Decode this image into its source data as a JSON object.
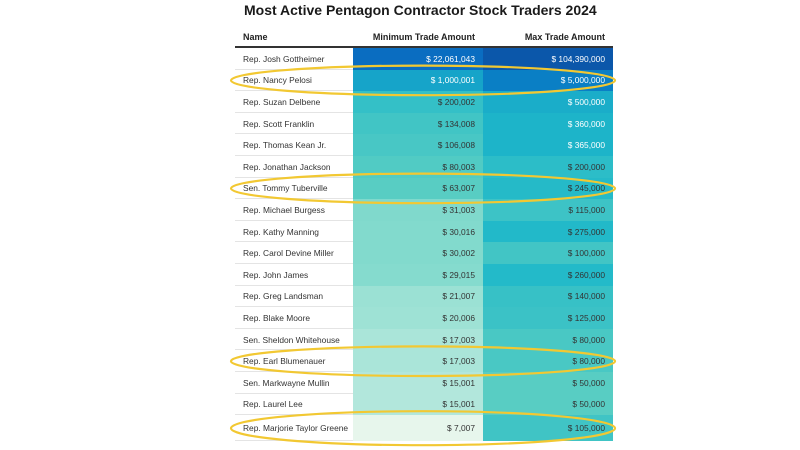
{
  "title": "Most Active Pentagon Contractor Stock Traders 2024",
  "colors": {
    "highlight_ring": "#f2c832",
    "min_scale": [
      "#eef8ee",
      "#5fd0c2",
      "#1fb8c9",
      "#0a8cc8",
      "#0a6bc1"
    ],
    "max_scale": [
      "#5fd0c2",
      "#1fb8c9",
      "#0a8cc8",
      "#0a6bc1",
      "#0b55a8"
    ]
  },
  "chart_data": {
    "type": "table",
    "columns": [
      "Name",
      "Minimum Trade Amount",
      "Max Trade Amount"
    ],
    "rows": [
      {
        "name": "Rep. Josh Gottheimer",
        "min": "$ 22,061,043",
        "max": "$ 104,390,000",
        "min_value": 22061043,
        "max_value": 104390000,
        "highlighted": false
      },
      {
        "name": "Rep. Nancy Pelosi",
        "min": "$ 1,000,001",
        "max": "$ 5,000,000",
        "min_value": 1000001,
        "max_value": 5000000,
        "highlighted": true
      },
      {
        "name": "Rep. Suzan Delbene",
        "min": "$ 200,002",
        "max": "$ 500,000",
        "min_value": 200002,
        "max_value": 500000,
        "highlighted": false
      },
      {
        "name": "Rep. Scott Franklin",
        "min": "$ 134,008",
        "max": "$ 360,000",
        "min_value": 134008,
        "max_value": 360000,
        "highlighted": false
      },
      {
        "name": "Rep. Thomas Kean Jr.",
        "min": "$ 106,008",
        "max": "$ 365,000",
        "min_value": 106008,
        "max_value": 365000,
        "highlighted": false
      },
      {
        "name": "Rep. Jonathan Jackson",
        "min": "$ 80,003",
        "max": "$ 200,000",
        "min_value": 80003,
        "max_value": 200000,
        "highlighted": false
      },
      {
        "name": "Sen. Tommy Tuberville",
        "min": "$ 63,007",
        "max": "$ 245,000",
        "min_value": 63007,
        "max_value": 245000,
        "highlighted": true
      },
      {
        "name": "Rep. Michael Burgess",
        "min": "$ 31,003",
        "max": "$ 115,000",
        "min_value": 31003,
        "max_value": 115000,
        "highlighted": false
      },
      {
        "name": "Rep. Kathy Manning",
        "min": "$ 30,016",
        "max": "$ 275,000",
        "min_value": 30016,
        "max_value": 275000,
        "highlighted": false
      },
      {
        "name": "Rep. Carol Devine Miller",
        "min": "$ 30,002",
        "max": "$ 100,000",
        "min_value": 30002,
        "max_value": 100000,
        "highlighted": false
      },
      {
        "name": "Rep. John James",
        "min": "$ 29,015",
        "max": "$ 260,000",
        "min_value": 29015,
        "max_value": 260000,
        "highlighted": false
      },
      {
        "name": "Rep. Greg Landsman",
        "min": "$ 21,007",
        "max": "$ 140,000",
        "min_value": 21007,
        "max_value": 140000,
        "highlighted": false
      },
      {
        "name": "Rep. Blake Moore",
        "min": "$ 20,006",
        "max": "$ 125,000",
        "min_value": 20006,
        "max_value": 125000,
        "highlighted": false
      },
      {
        "name": "Sen. Sheldon Whitehouse",
        "min": "$ 17,003",
        "max": "$ 80,000",
        "min_value": 17003,
        "max_value": 80000,
        "highlighted": false
      },
      {
        "name": "Rep. Earl Blumenauer",
        "min": "$ 17,003",
        "max": "$ 80,000",
        "min_value": 17003,
        "max_value": 80000,
        "highlighted": true
      },
      {
        "name": "Sen. Markwayne Mullin",
        "min": "$ 15,001",
        "max": "$ 50,000",
        "min_value": 15001,
        "max_value": 50000,
        "highlighted": false
      },
      {
        "name": "Rep. Laurel Lee",
        "min": "$ 15,001",
        "max": "$ 50,000",
        "min_value": 15001,
        "max_value": 50000,
        "highlighted": false
      },
      {
        "name": "Rep. Marjorie Taylor Greene",
        "min": "$ 7,007",
        "max": "$ 105,000",
        "min_value": 7007,
        "max_value": 105000,
        "highlighted": true
      }
    ]
  }
}
